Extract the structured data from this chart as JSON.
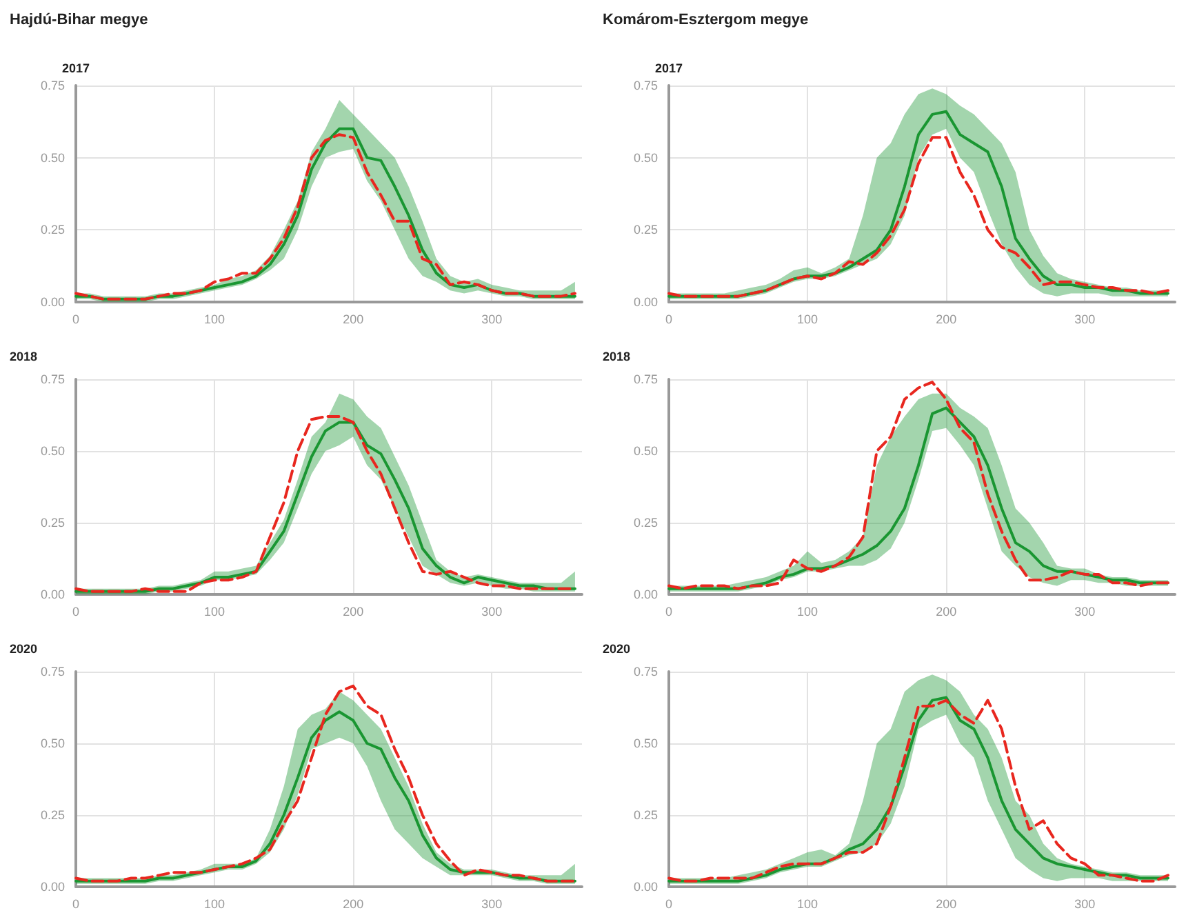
{
  "chart_data": [
    {
      "type": "line",
      "title": "Hajdú-Bihar megye",
      "subtitle": "2017",
      "x": [
        0,
        10,
        20,
        30,
        40,
        50,
        60,
        70,
        80,
        90,
        100,
        110,
        120,
        130,
        140,
        150,
        160,
        170,
        180,
        190,
        200,
        210,
        220,
        230,
        240,
        250,
        260,
        270,
        280,
        290,
        300,
        310,
        320,
        330,
        340,
        350,
        360
      ],
      "xlim": [
        0,
        365
      ],
      "xticks": [
        0,
        100,
        200,
        300
      ],
      "ylim": [
        0,
        0.75
      ],
      "yticks": [
        {
          "value": 0,
          "label": "0.00"
        },
        {
          "value": 0.25,
          "label": "0.25"
        },
        {
          "value": 0.5,
          "label": "0.50"
        },
        {
          "value": 0.75,
          "label": "0.75"
        }
      ],
      "grid": true,
      "series": [
        {
          "color": "#1a9632",
          "line_style": "solid",
          "values": [
            0.02,
            0.02,
            0.01,
            0.01,
            0.01,
            0.01,
            0.02,
            0.02,
            0.03,
            0.04,
            0.05,
            0.06,
            0.07,
            0.09,
            0.13,
            0.2,
            0.3,
            0.46,
            0.55,
            0.6,
            0.6,
            0.5,
            0.49,
            0.4,
            0.3,
            0.18,
            0.1,
            0.06,
            0.05,
            0.06,
            0.04,
            0.03,
            0.03,
            0.02,
            0.02,
            0.02,
            0.02
          ],
          "lower": [
            0.01,
            0.01,
            0,
            0,
            0,
            0,
            0.01,
            0.01,
            0.02,
            0.03,
            0.04,
            0.05,
            0.06,
            0.08,
            0.11,
            0.15,
            0.25,
            0.4,
            0.5,
            0.52,
            0.53,
            0.42,
            0.35,
            0.25,
            0.15,
            0.09,
            0.07,
            0.04,
            0.03,
            0.04,
            0.03,
            0.02,
            0.02,
            0.01,
            0.01,
            0.01,
            0.01
          ],
          "upper": [
            0.03,
            0.03,
            0.02,
            0.02,
            0.02,
            0.02,
            0.03,
            0.03,
            0.04,
            0.05,
            0.06,
            0.08,
            0.09,
            0.11,
            0.16,
            0.25,
            0.35,
            0.52,
            0.6,
            0.7,
            0.65,
            0.6,
            0.55,
            0.5,
            0.4,
            0.28,
            0.15,
            0.09,
            0.07,
            0.08,
            0.06,
            0.05,
            0.04,
            0.04,
            0.04,
            0.04,
            0.07
          ]
        },
        {
          "color": "#e8271f",
          "line_style": "dashed",
          "values": [
            0.03,
            0.02,
            0.01,
            0.01,
            0.01,
            0.01,
            0.02,
            0.03,
            0.03,
            0.04,
            0.07,
            0.08,
            0.1,
            0.1,
            0.15,
            0.22,
            0.33,
            0.5,
            0.56,
            0.58,
            0.57,
            0.45,
            0.37,
            0.28,
            0.28,
            0.15,
            0.13,
            0.06,
            0.07,
            0.06,
            0.04,
            0.03,
            0.03,
            0.02,
            0.02,
            0.02,
            0.03
          ]
        }
      ]
    },
    {
      "type": "line",
      "title": "Komárom-Esztergom megye",
      "subtitle": "2017",
      "x": [
        0,
        10,
        20,
        30,
        40,
        50,
        60,
        70,
        80,
        90,
        100,
        110,
        120,
        130,
        140,
        150,
        160,
        170,
        180,
        190,
        200,
        210,
        220,
        230,
        240,
        250,
        260,
        270,
        280,
        290,
        300,
        310,
        320,
        330,
        340,
        350,
        360
      ],
      "xlim": [
        0,
        365
      ],
      "xticks": [
        0,
        100,
        200,
        300
      ],
      "ylim": [
        0,
        0.75
      ],
      "yticks": [
        {
          "value": 0,
          "label": "0.00"
        },
        {
          "value": 0.25,
          "label": "0.25"
        },
        {
          "value": 0.5,
          "label": "0.50"
        },
        {
          "value": 0.75,
          "label": "0.75"
        }
      ],
      "grid": true,
      "series": [
        {
          "color": "#1a9632",
          "line_style": "solid",
          "values": [
            0.02,
            0.02,
            0.02,
            0.02,
            0.02,
            0.02,
            0.03,
            0.04,
            0.06,
            0.08,
            0.09,
            0.09,
            0.1,
            0.12,
            0.15,
            0.18,
            0.25,
            0.4,
            0.58,
            0.65,
            0.66,
            0.58,
            0.55,
            0.52,
            0.4,
            0.22,
            0.15,
            0.09,
            0.06,
            0.06,
            0.05,
            0.05,
            0.04,
            0.04,
            0.03,
            0.03,
            0.03
          ],
          "lower": [
            0.01,
            0.01,
            0.01,
            0.01,
            0.01,
            0.01,
            0.02,
            0.03,
            0.05,
            0.07,
            0.08,
            0.08,
            0.09,
            0.11,
            0.13,
            0.15,
            0.2,
            0.3,
            0.5,
            0.58,
            0.6,
            0.5,
            0.45,
            0.32,
            0.2,
            0.12,
            0.06,
            0.03,
            0.02,
            0.03,
            0.03,
            0.03,
            0.02,
            0.02,
            0.02,
            0.02,
            0.02
          ],
          "upper": [
            0.03,
            0.03,
            0.03,
            0.03,
            0.03,
            0.04,
            0.05,
            0.06,
            0.08,
            0.11,
            0.12,
            0.1,
            0.12,
            0.15,
            0.3,
            0.5,
            0.55,
            0.65,
            0.72,
            0.74,
            0.72,
            0.68,
            0.65,
            0.6,
            0.55,
            0.45,
            0.25,
            0.16,
            0.1,
            0.08,
            0.07,
            0.06,
            0.05,
            0.05,
            0.04,
            0.04,
            0.04
          ]
        },
        {
          "color": "#e8271f",
          "line_style": "dashed",
          "values": [
            0.03,
            0.02,
            0.02,
            0.02,
            0.02,
            0.02,
            0.03,
            0.04,
            0.06,
            0.08,
            0.09,
            0.08,
            0.1,
            0.14,
            0.13,
            0.17,
            0.23,
            0.32,
            0.48,
            0.57,
            0.57,
            0.45,
            0.37,
            0.25,
            0.19,
            0.17,
            0.12,
            0.06,
            0.07,
            0.07,
            0.06,
            0.05,
            0.05,
            0.04,
            0.04,
            0.03,
            0.04
          ]
        }
      ]
    },
    {
      "type": "line",
      "title": "2018",
      "x": [
        0,
        10,
        20,
        30,
        40,
        50,
        60,
        70,
        80,
        90,
        100,
        110,
        120,
        130,
        140,
        150,
        160,
        170,
        180,
        190,
        200,
        210,
        220,
        230,
        240,
        250,
        260,
        270,
        280,
        290,
        300,
        310,
        320,
        330,
        340,
        350,
        360
      ],
      "xlim": [
        0,
        365
      ],
      "xticks": [
        0,
        100,
        200,
        300
      ],
      "ylim": [
        0,
        0.75
      ],
      "yticks": [
        {
          "value": 0,
          "label": "0.00"
        },
        {
          "value": 0.25,
          "label": "0.25"
        },
        {
          "value": 0.5,
          "label": "0.50"
        },
        {
          "value": 0.75,
          "label": "0.75"
        }
      ],
      "grid": true,
      "series": [
        {
          "color": "#1a9632",
          "line_style": "solid",
          "values": [
            0.01,
            0.01,
            0.01,
            0.01,
            0.01,
            0.01,
            0.02,
            0.02,
            0.03,
            0.04,
            0.06,
            0.06,
            0.07,
            0.08,
            0.15,
            0.22,
            0.35,
            0.48,
            0.57,
            0.6,
            0.6,
            0.52,
            0.49,
            0.4,
            0.3,
            0.16,
            0.1,
            0.06,
            0.04,
            0.06,
            0.05,
            0.04,
            0.03,
            0.03,
            0.02,
            0.02,
            0.02
          ],
          "lower": [
            0,
            0,
            0,
            0,
            0,
            0,
            0.01,
            0.01,
            0.02,
            0.03,
            0.05,
            0.05,
            0.06,
            0.07,
            0.12,
            0.18,
            0.3,
            0.42,
            0.5,
            0.52,
            0.55,
            0.45,
            0.4,
            0.3,
            0.2,
            0.1,
            0.07,
            0.04,
            0.03,
            0.04,
            0.03,
            0.02,
            0.02,
            0.01,
            0.01,
            0.01,
            0.01
          ],
          "upper": [
            0.02,
            0.02,
            0.02,
            0.02,
            0.02,
            0.02,
            0.03,
            0.03,
            0.04,
            0.05,
            0.08,
            0.08,
            0.09,
            0.1,
            0.18,
            0.26,
            0.4,
            0.55,
            0.6,
            0.7,
            0.68,
            0.62,
            0.58,
            0.48,
            0.38,
            0.25,
            0.12,
            0.08,
            0.06,
            0.07,
            0.06,
            0.05,
            0.04,
            0.04,
            0.04,
            0.04,
            0.08
          ]
        },
        {
          "color": "#e8271f",
          "line_style": "dashed",
          "values": [
            0.02,
            0.01,
            0.01,
            0.01,
            0.01,
            0.02,
            0.01,
            0.01,
            0.01,
            0.04,
            0.05,
            0.05,
            0.06,
            0.08,
            0.2,
            0.32,
            0.5,
            0.61,
            0.62,
            0.62,
            0.6,
            0.5,
            0.42,
            0.3,
            0.18,
            0.08,
            0.07,
            0.08,
            0.06,
            0.04,
            0.03,
            0.03,
            0.02,
            0.02,
            0.02,
            0.02,
            0.02
          ]
        }
      ]
    },
    {
      "type": "line",
      "title": "2018",
      "x": [
        0,
        10,
        20,
        30,
        40,
        50,
        60,
        70,
        80,
        90,
        100,
        110,
        120,
        130,
        140,
        150,
        160,
        170,
        180,
        190,
        200,
        210,
        220,
        230,
        240,
        250,
        260,
        270,
        280,
        290,
        300,
        310,
        320,
        330,
        340,
        350,
        360
      ],
      "xlim": [
        0,
        365
      ],
      "xticks": [
        0,
        100,
        200,
        300
      ],
      "ylim": [
        0,
        0.75
      ],
      "yticks": [
        {
          "value": 0,
          "label": "0.00"
        },
        {
          "value": 0.25,
          "label": "0.25"
        },
        {
          "value": 0.5,
          "label": "0.50"
        },
        {
          "value": 0.75,
          "label": "0.75"
        }
      ],
      "grid": true,
      "series": [
        {
          "color": "#1a9632",
          "line_style": "solid",
          "values": [
            0.02,
            0.02,
            0.02,
            0.02,
            0.02,
            0.02,
            0.03,
            0.04,
            0.06,
            0.07,
            0.09,
            0.09,
            0.1,
            0.12,
            0.14,
            0.17,
            0.22,
            0.3,
            0.45,
            0.63,
            0.65,
            0.6,
            0.55,
            0.45,
            0.3,
            0.18,
            0.15,
            0.1,
            0.08,
            0.08,
            0.07,
            0.06,
            0.05,
            0.05,
            0.04,
            0.04,
            0.04
          ],
          "lower": [
            0.01,
            0.01,
            0.01,
            0.01,
            0.01,
            0.01,
            0.02,
            0.03,
            0.05,
            0.06,
            0.08,
            0.08,
            0.09,
            0.1,
            0.1,
            0.12,
            0.16,
            0.25,
            0.4,
            0.57,
            0.58,
            0.52,
            0.45,
            0.3,
            0.15,
            0.1,
            0.06,
            0.04,
            0.03,
            0.05,
            0.05,
            0.04,
            0.04,
            0.03,
            0.03,
            0.03,
            0.03
          ],
          "upper": [
            0.03,
            0.03,
            0.03,
            0.03,
            0.03,
            0.04,
            0.05,
            0.06,
            0.08,
            0.1,
            0.15,
            0.11,
            0.12,
            0.15,
            0.2,
            0.45,
            0.55,
            0.62,
            0.68,
            0.7,
            0.7,
            0.65,
            0.62,
            0.58,
            0.45,
            0.3,
            0.25,
            0.18,
            0.1,
            0.09,
            0.09,
            0.07,
            0.06,
            0.06,
            0.05,
            0.05,
            0.05
          ]
        },
        {
          "color": "#e8271f",
          "line_style": "dashed",
          "values": [
            0.03,
            0.02,
            0.03,
            0.03,
            0.03,
            0.02,
            0.03,
            0.03,
            0.04,
            0.12,
            0.09,
            0.08,
            0.1,
            0.13,
            0.2,
            0.5,
            0.55,
            0.68,
            0.72,
            0.74,
            0.68,
            0.58,
            0.53,
            0.35,
            0.22,
            0.12,
            0.05,
            0.05,
            0.06,
            0.08,
            0.07,
            0.07,
            0.04,
            0.04,
            0.03,
            0.04,
            0.04
          ]
        }
      ]
    },
    {
      "type": "line",
      "title": "2020",
      "x": [
        0,
        10,
        20,
        30,
        40,
        50,
        60,
        70,
        80,
        90,
        100,
        110,
        120,
        130,
        140,
        150,
        160,
        170,
        180,
        190,
        200,
        210,
        220,
        230,
        240,
        250,
        260,
        270,
        280,
        290,
        300,
        310,
        320,
        330,
        340,
        350,
        360
      ],
      "xlim": [
        0,
        365
      ],
      "xticks": [
        0,
        100,
        200,
        300
      ],
      "ylim": [
        0,
        0.75
      ],
      "yticks": [
        {
          "value": 0,
          "label": "0.00"
        },
        {
          "value": 0.25,
          "label": "0.25"
        },
        {
          "value": 0.5,
          "label": "0.50"
        },
        {
          "value": 0.75,
          "label": "0.75"
        }
      ],
      "grid": true,
      "series": [
        {
          "color": "#1a9632",
          "line_style": "solid",
          "values": [
            0.02,
            0.02,
            0.02,
            0.02,
            0.02,
            0.02,
            0.03,
            0.03,
            0.04,
            0.05,
            0.06,
            0.07,
            0.07,
            0.09,
            0.15,
            0.25,
            0.38,
            0.52,
            0.58,
            0.61,
            0.58,
            0.5,
            0.48,
            0.38,
            0.3,
            0.18,
            0.1,
            0.06,
            0.05,
            0.05,
            0.05,
            0.04,
            0.03,
            0.03,
            0.02,
            0.02,
            0.02
          ],
          "lower": [
            0.01,
            0.01,
            0.01,
            0.01,
            0.01,
            0.01,
            0.02,
            0.02,
            0.03,
            0.04,
            0.05,
            0.06,
            0.06,
            0.08,
            0.12,
            0.2,
            0.32,
            0.48,
            0.5,
            0.52,
            0.5,
            0.42,
            0.3,
            0.2,
            0.15,
            0.1,
            0.07,
            0.04,
            0.04,
            0.04,
            0.04,
            0.03,
            0.02,
            0.02,
            0.01,
            0.01,
            0.01
          ],
          "upper": [
            0.03,
            0.03,
            0.03,
            0.03,
            0.03,
            0.03,
            0.04,
            0.04,
            0.05,
            0.06,
            0.08,
            0.08,
            0.08,
            0.1,
            0.2,
            0.35,
            0.55,
            0.6,
            0.62,
            0.68,
            0.65,
            0.6,
            0.55,
            0.45,
            0.35,
            0.22,
            0.12,
            0.08,
            0.06,
            0.06,
            0.06,
            0.05,
            0.04,
            0.04,
            0.04,
            0.04,
            0.08
          ]
        },
        {
          "color": "#e8271f",
          "line_style": "dashed",
          "values": [
            0.03,
            0.02,
            0.02,
            0.02,
            0.03,
            0.03,
            0.04,
            0.05,
            0.05,
            0.05,
            0.06,
            0.07,
            0.08,
            0.1,
            0.13,
            0.22,
            0.3,
            0.45,
            0.6,
            0.68,
            0.7,
            0.63,
            0.6,
            0.48,
            0.38,
            0.25,
            0.15,
            0.09,
            0.04,
            0.06,
            0.05,
            0.04,
            0.04,
            0.03,
            0.02,
            0.02,
            0.02
          ]
        }
      ]
    },
    {
      "type": "line",
      "title": "2020",
      "x": [
        0,
        10,
        20,
        30,
        40,
        50,
        60,
        70,
        80,
        90,
        100,
        110,
        120,
        130,
        140,
        150,
        160,
        170,
        180,
        190,
        200,
        210,
        220,
        230,
        240,
        250,
        260,
        270,
        280,
        290,
        300,
        310,
        320,
        330,
        340,
        350,
        360
      ],
      "xlim": [
        0,
        365
      ],
      "xticks": [
        0,
        100,
        200,
        300
      ],
      "ylim": [
        0,
        0.75
      ],
      "yticks": [
        {
          "value": 0,
          "label": "0.00"
        },
        {
          "value": 0.25,
          "label": "0.25"
        },
        {
          "value": 0.5,
          "label": "0.50"
        },
        {
          "value": 0.75,
          "label": "0.75"
        }
      ],
      "grid": true,
      "series": [
        {
          "color": "#1a9632",
          "line_style": "solid",
          "values": [
            0.02,
            0.02,
            0.02,
            0.02,
            0.02,
            0.02,
            0.03,
            0.04,
            0.06,
            0.07,
            0.08,
            0.08,
            0.1,
            0.13,
            0.15,
            0.2,
            0.28,
            0.42,
            0.58,
            0.65,
            0.66,
            0.58,
            0.55,
            0.45,
            0.3,
            0.2,
            0.15,
            0.1,
            0.08,
            0.07,
            0.06,
            0.05,
            0.04,
            0.04,
            0.03,
            0.03,
            0.03
          ],
          "lower": [
            0.01,
            0.01,
            0.01,
            0.01,
            0.01,
            0.01,
            0.02,
            0.03,
            0.05,
            0.06,
            0.07,
            0.07,
            0.09,
            0.11,
            0.12,
            0.15,
            0.22,
            0.35,
            0.55,
            0.58,
            0.6,
            0.5,
            0.45,
            0.3,
            0.2,
            0.1,
            0.06,
            0.03,
            0.02,
            0.03,
            0.03,
            0.03,
            0.02,
            0.02,
            0.02,
            0.02,
            0.02
          ],
          "upper": [
            0.03,
            0.03,
            0.03,
            0.03,
            0.03,
            0.04,
            0.05,
            0.06,
            0.08,
            0.1,
            0.12,
            0.13,
            0.11,
            0.15,
            0.3,
            0.5,
            0.55,
            0.68,
            0.72,
            0.74,
            0.72,
            0.68,
            0.6,
            0.55,
            0.45,
            0.3,
            0.25,
            0.15,
            0.1,
            0.08,
            0.07,
            0.06,
            0.05,
            0.05,
            0.04,
            0.04,
            0.04
          ]
        },
        {
          "color": "#e8271f",
          "line_style": "dashed",
          "values": [
            0.03,
            0.02,
            0.02,
            0.03,
            0.03,
            0.03,
            0.03,
            0.05,
            0.07,
            0.08,
            0.08,
            0.08,
            0.1,
            0.12,
            0.12,
            0.15,
            0.28,
            0.45,
            0.63,
            0.63,
            0.65,
            0.6,
            0.57,
            0.65,
            0.55,
            0.35,
            0.2,
            0.23,
            0.15,
            0.1,
            0.08,
            0.04,
            0.04,
            0.03,
            0.02,
            0.02,
            0.04
          ]
        }
      ]
    }
  ]
}
